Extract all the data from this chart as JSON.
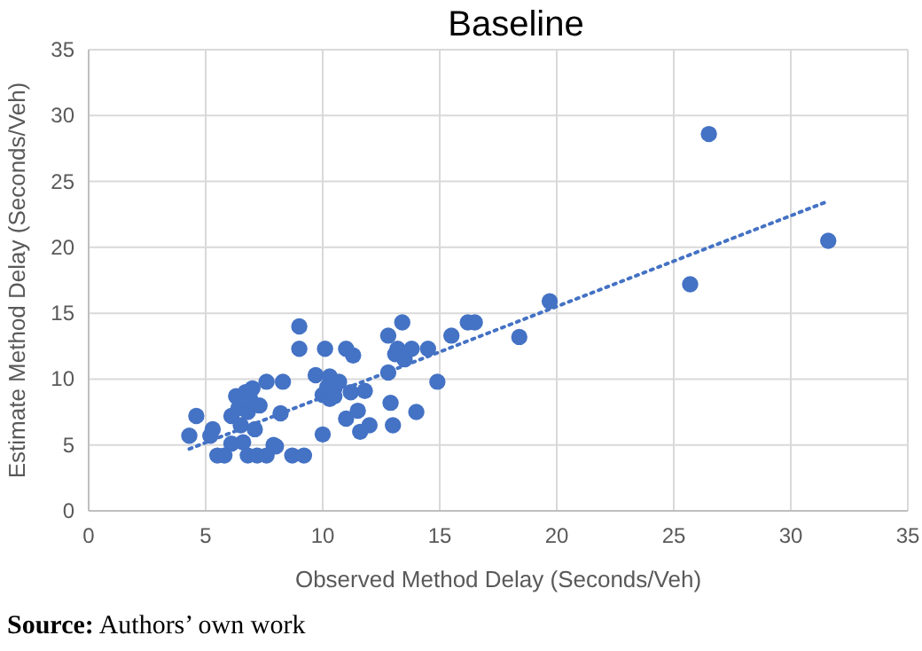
{
  "chart_data": {
    "type": "scatter",
    "title": "Baseline",
    "xlabel": "Observed Method Delay (Seconds/Veh)",
    "ylabel": "Estimate Method Delay (Seconds/Veh)",
    "xlim": [
      0,
      35
    ],
    "ylim": [
      0,
      35
    ],
    "xticks": [
      0,
      5,
      10,
      15,
      20,
      25,
      30,
      35
    ],
    "yticks": [
      0,
      5,
      10,
      15,
      20,
      25,
      30,
      35
    ],
    "grid": true,
    "marker": "circle",
    "x": [
      4.3,
      4.6,
      5.2,
      5.3,
      5.5,
      5.8,
      6.1,
      6.1,
      6.3,
      6.4,
      6.5,
      6.6,
      6.7,
      6.8,
      6.8,
      6.9,
      7.0,
      7.1,
      7.2,
      7.3,
      7.6,
      7.6,
      7.9,
      8.0,
      8.2,
      8.3,
      8.7,
      9.0,
      9.0,
      9.2,
      9.7,
      10.0,
      10.0,
      10.1,
      10.2,
      10.3,
      10.3,
      10.5,
      10.7,
      11.0,
      11.0,
      11.2,
      11.3,
      11.5,
      11.6,
      11.8,
      12.0,
      12.8,
      12.8,
      12.9,
      13.0,
      13.1,
      13.2,
      13.4,
      13.5,
      13.8,
      14.0,
      14.5,
      14.9,
      15.5,
      16.2,
      16.5,
      18.4,
      19.7,
      25.7,
      26.5,
      31.6
    ],
    "series": [
      {
        "color": "#4472c4",
        "values": [
          5.7,
          7.2,
          5.7,
          6.2,
          4.2,
          4.2,
          5.1,
          7.2,
          8.7,
          7.8,
          6.5,
          5.2,
          9.0,
          7.5,
          4.2,
          8.5,
          9.3,
          6.2,
          4.2,
          8.0,
          4.2,
          9.8,
          5.0,
          4.9,
          7.4,
          9.8,
          4.2,
          12.3,
          14.0,
          4.2,
          10.3,
          5.8,
          8.8,
          12.3,
          9.4,
          8.5,
          10.2,
          8.7,
          9.8,
          7.0,
          12.3,
          9.0,
          11.8,
          7.6,
          6.0,
          9.1,
          6.5,
          10.5,
          13.3,
          8.2,
          6.5,
          11.9,
          12.3,
          14.3,
          11.5,
          12.3,
          7.5,
          12.3,
          9.8,
          13.3,
          14.3,
          14.3,
          13.2,
          15.9,
          17.2,
          28.6,
          20.5
        ]
      },
      {
        "type": "line",
        "color": "#4472c4",
        "line_style": "dotted",
        "marker": "none",
        "x": [
          4.3,
          31.6
        ],
        "values": [
          4.7,
          23.5
        ]
      }
    ],
    "annotations": [
      "Source: Authors’ own work"
    ]
  }
}
